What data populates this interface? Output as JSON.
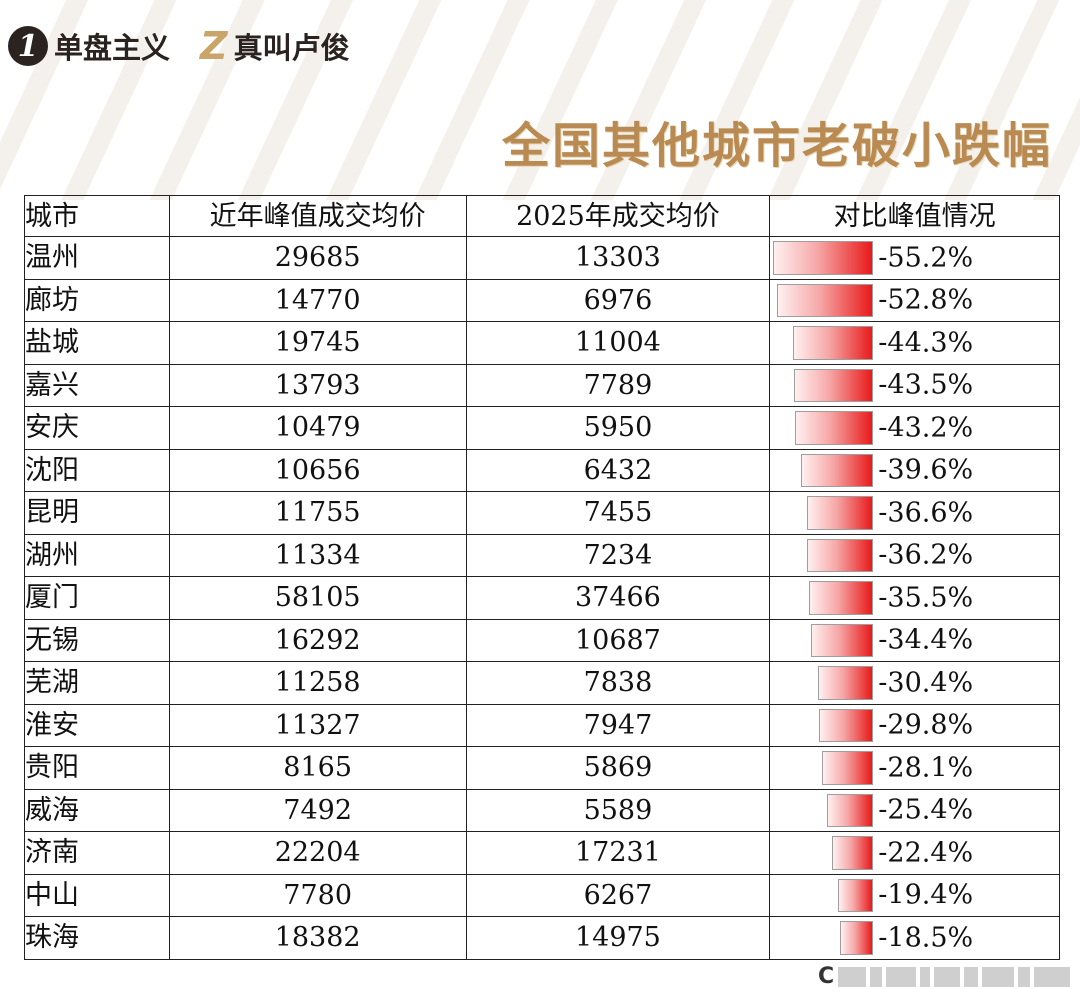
{
  "header": {
    "logo1_digit": "1",
    "logo1_text": "单盘主义",
    "logo2_mark": "Z",
    "logo2_text": "真叫卢俊"
  },
  "title": "全国其他城市老破小跌幅",
  "table": {
    "columns": [
      "城市",
      "近年峰值成交均价",
      "2025年成交均价",
      "对比峰值情况"
    ],
    "rows": [
      {
        "city": "温州",
        "peak": "29685",
        "current": "13303",
        "drop": "-55.2%",
        "drop_value": 55.2
      },
      {
        "city": "廊坊",
        "peak": "14770",
        "current": "6976",
        "drop": "-52.8%",
        "drop_value": 52.8
      },
      {
        "city": "盐城",
        "peak": "19745",
        "current": "11004",
        "drop": "-44.3%",
        "drop_value": 44.3
      },
      {
        "city": "嘉兴",
        "peak": "13793",
        "current": "7789",
        "drop": "-43.5%",
        "drop_value": 43.5
      },
      {
        "city": "安庆",
        "peak": "10479",
        "current": "5950",
        "drop": "-43.2%",
        "drop_value": 43.2
      },
      {
        "city": "沈阳",
        "peak": "10656",
        "current": "6432",
        "drop": "-39.6%",
        "drop_value": 39.6
      },
      {
        "city": "昆明",
        "peak": "11755",
        "current": "7455",
        "drop": "-36.6%",
        "drop_value": 36.6
      },
      {
        "city": "湖州",
        "peak": "11334",
        "current": "7234",
        "drop": "-36.2%",
        "drop_value": 36.2
      },
      {
        "city": "厦门",
        "peak": "58105",
        "current": "37466",
        "drop": "-35.5%",
        "drop_value": 35.5
      },
      {
        "city": "无锡",
        "peak": "16292",
        "current": "10687",
        "drop": "-34.4%",
        "drop_value": 34.4
      },
      {
        "city": "芜湖",
        "peak": "11258",
        "current": "7838",
        "drop": "-30.4%",
        "drop_value": 30.4
      },
      {
        "city": "淮安",
        "peak": "11327",
        "current": "7947",
        "drop": "-29.8%",
        "drop_value": 29.8
      },
      {
        "city": "贵阳",
        "peak": "8165",
        "current": "5869",
        "drop": "-28.1%",
        "drop_value": 28.1
      },
      {
        "city": "威海",
        "peak": "7492",
        "current": "5589",
        "drop": "-25.4%",
        "drop_value": 25.4
      },
      {
        "city": "济南",
        "peak": "22204",
        "current": "17231",
        "drop": "-22.4%",
        "drop_value": 22.4
      },
      {
        "city": "中山",
        "peak": "7780",
        "current": "6267",
        "drop": "-19.4%",
        "drop_value": 19.4
      },
      {
        "city": "珠海",
        "peak": "18382",
        "current": "14975",
        "drop": "-18.5%",
        "drop_value": 18.5
      }
    ]
  },
  "watermark": {
    "prefix": "C"
  },
  "colors": {
    "title": "#b98b52",
    "bar_end": "#e81a1a",
    "logo_accent": "#c9a56a"
  }
}
